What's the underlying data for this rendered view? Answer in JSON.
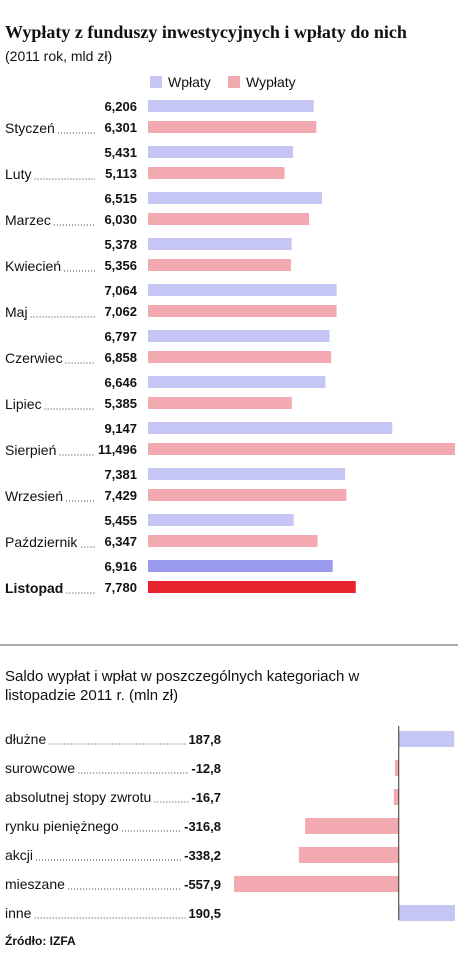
{
  "chart_data": [
    {
      "type": "bar",
      "orientation": "horizontal",
      "title": "Wypłaty z funduszy inwestycyjnych i wpłaty do nich",
      "subtitle": "(2011 rok, mld zł)",
      "categories": [
        "Styczeń",
        "Luty",
        "Marzec",
        "Kwiecień",
        "Maj",
        "Czerwiec",
        "Lipiec",
        "Sierpień",
        "Wrzesień",
        "Październik",
        "Listopad"
      ],
      "series": [
        {
          "name": "Wpłaty",
          "color": "#c6c6f4",
          "label_color": "#111111",
          "values": [
            6.206,
            5.431,
            6.515,
            5.378,
            7.064,
            6.797,
            6.646,
            9.147,
            7.381,
            5.455,
            6.916
          ],
          "value_labels": [
            "6,206",
            "5,431",
            "6,515",
            "5,378",
            "7,064",
            "6,797",
            "6,646",
            "9,147",
            "7,381",
            "5,455",
            "6,916"
          ]
        },
        {
          "name": "Wypłaty",
          "color": "#f2aab0",
          "label_color": "#e3161e",
          "values": [
            6.301,
            5.113,
            6.03,
            5.356,
            7.062,
            6.858,
            5.385,
            11.496,
            7.429,
            6.347,
            7.78
          ],
          "value_labels": [
            "6,301",
            "5,113",
            "6,030",
            "5,356",
            "7,062",
            "6,858",
            "5,385",
            "11,496",
            "7,429",
            "6,347",
            "7,780"
          ]
        }
      ],
      "highlight": "Listopad",
      "highlight_colors": [
        "#9a9aee",
        "#e8232b"
      ]
    },
    {
      "type": "diverging-bar",
      "orientation": "horizontal",
      "title": "Saldo wypłat i wpłat w poszczególnych kategoriach w listopadzie 2011 r. (mln zł)",
      "categories": [
        "dłużne",
        "surowcowe",
        "absolutnej stopy zwrotu",
        "rynku pieniężnego",
        "akcji",
        "mieszane",
        "inne"
      ],
      "values": [
        187.8,
        -12.8,
        -16.7,
        -316.8,
        -338.2,
        -557.9,
        190.5
      ],
      "value_labels": [
        "187,8",
        "-12,8",
        "-16,7",
        "-316,8",
        "-338,2",
        "-557,9",
        "190,5"
      ],
      "positive_color": "#c6c6f4",
      "negative_color": "#f2aab0",
      "positive_label_color": "#111111",
      "negative_label_color": "#e3161e"
    }
  ],
  "source": "Źródło: IZFA"
}
